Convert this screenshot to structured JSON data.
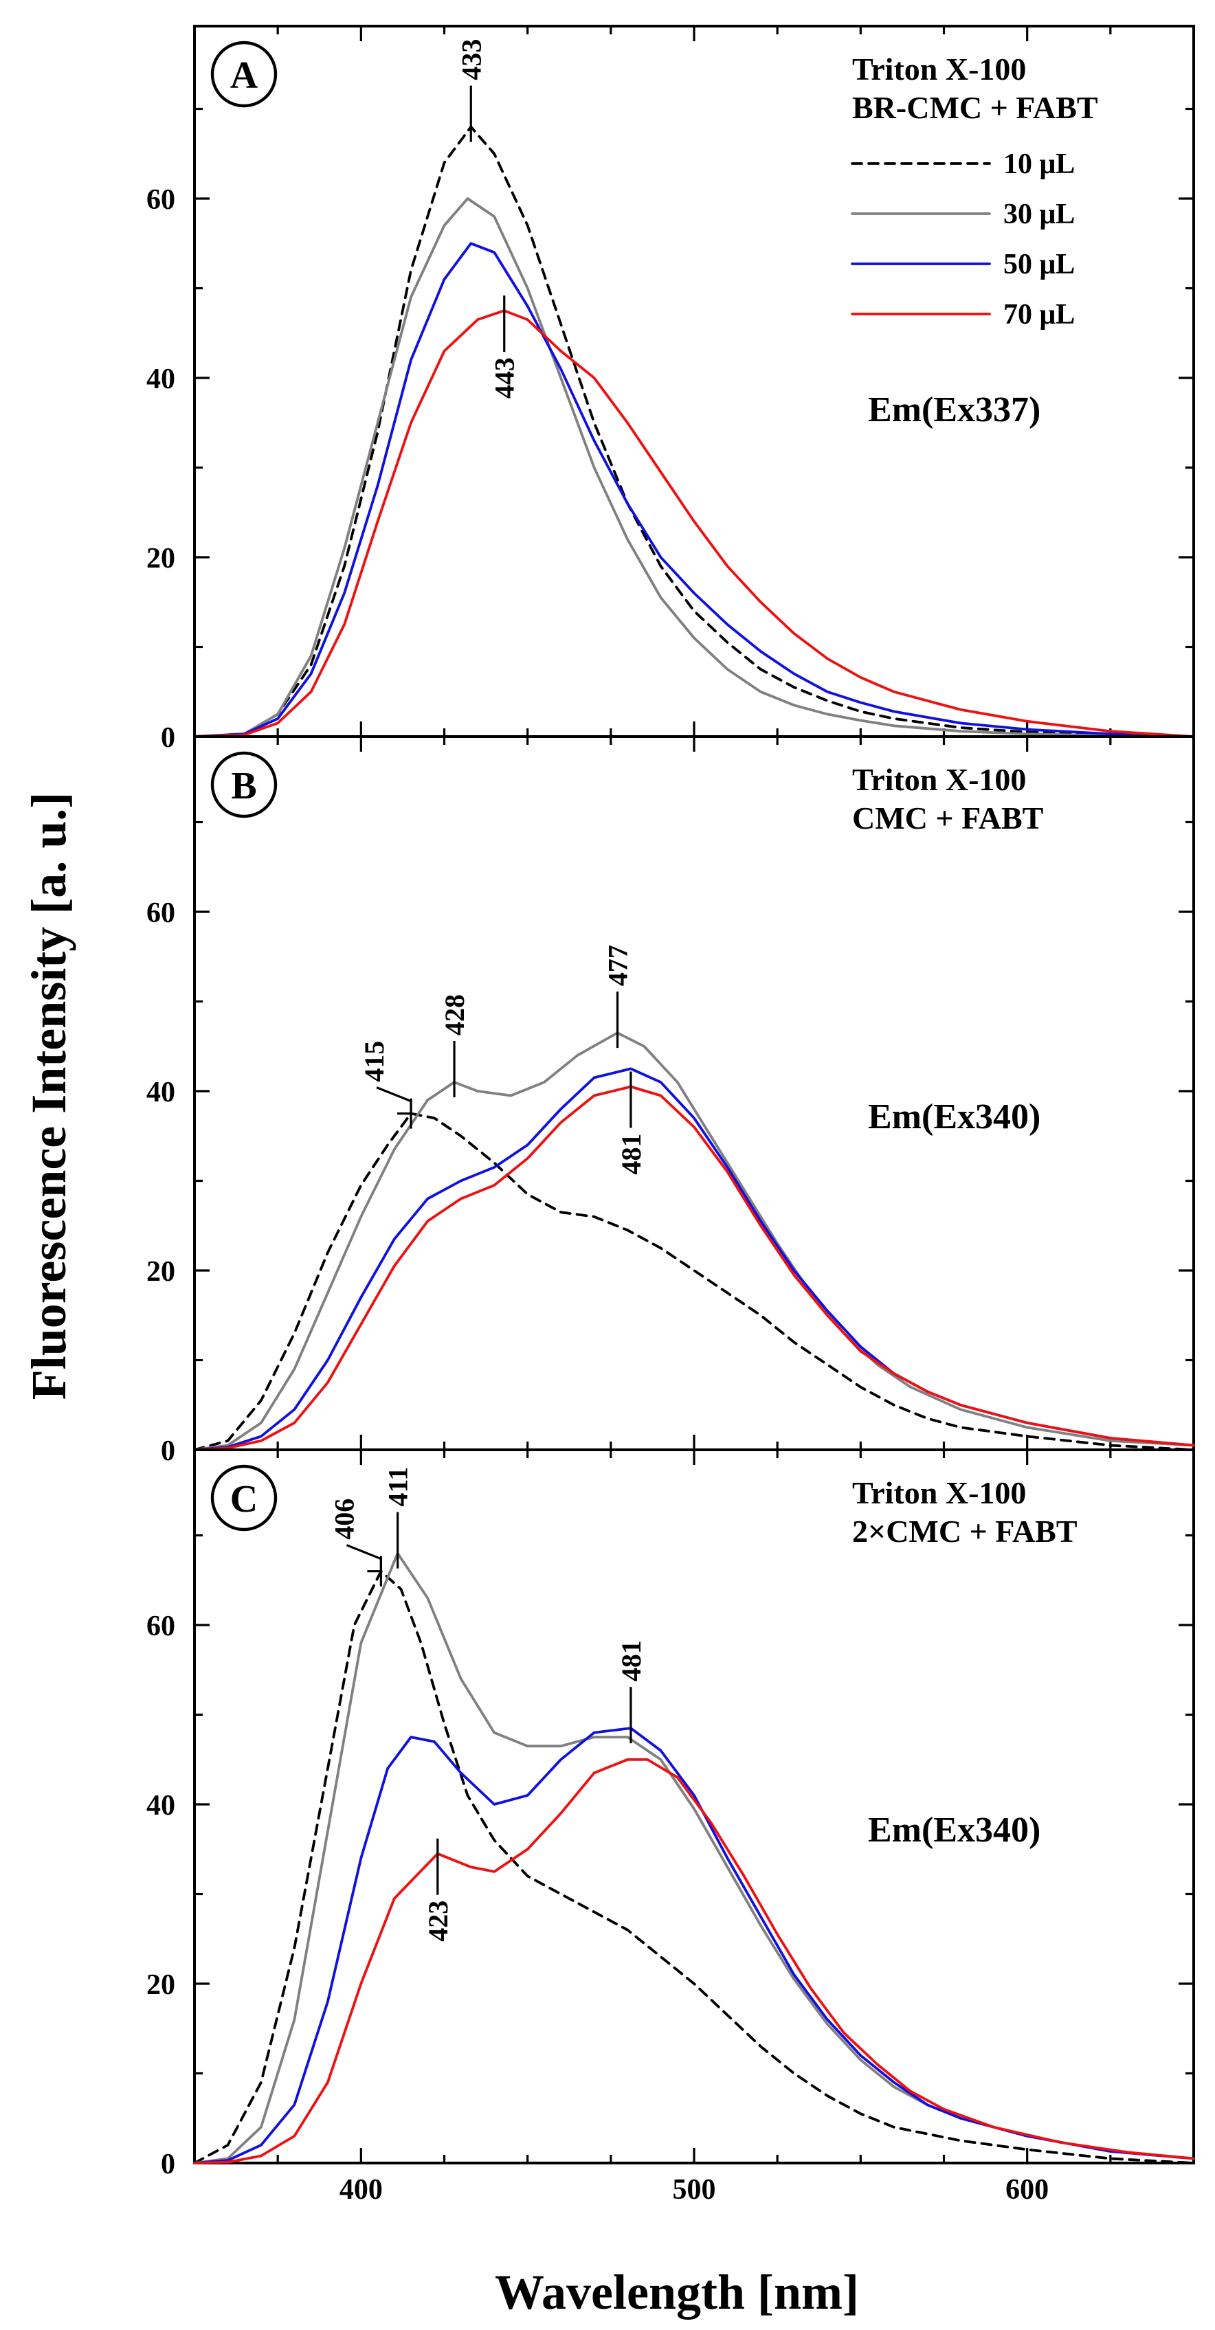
{
  "figure": {
    "ylabel": "Fluorescence Intensity [a. u.]",
    "xlabel": "Wavelength [nm]",
    "colors": {
      "10": "#000000",
      "30": "#808080",
      "50": "#1010e0",
      "70": "#ee1111"
    }
  },
  "chart_data": [
    {
      "panel": "A",
      "type": "line",
      "legend_title": [
        "Triton X-100",
        "BR-CMC + FABT"
      ],
      "legend_placement": "top-right",
      "em_label": "Em(Ex337)",
      "xlim": [
        350,
        650
      ],
      "ylim": [
        0,
        80
      ],
      "xticks": [
        "400",
        "500",
        "600"
      ],
      "yticks": [
        "0",
        "20",
        "40",
        "60"
      ],
      "series": [
        {
          "name": "10 μL",
          "style": "dashed",
          "x": [
            350,
            365,
            375,
            385,
            395,
            405,
            415,
            425,
            433,
            440,
            450,
            460,
            470,
            480,
            490,
            500,
            510,
            520,
            530,
            540,
            550,
            560,
            580,
            600,
            625,
            650
          ],
          "y": [
            0,
            0.3,
            2.5,
            8,
            19,
            34,
            52,
            64,
            68,
            65,
            57,
            46,
            35,
            26,
            19,
            14,
            10.5,
            7.5,
            5.5,
            4,
            2.8,
            2,
            1,
            0.5,
            0.2,
            0
          ]
        },
        {
          "name": "30 μL",
          "style": "solid",
          "x": [
            350,
            365,
            375,
            385,
            395,
            405,
            415,
            425,
            432,
            440,
            450,
            460,
            470,
            480,
            490,
            500,
            510,
            520,
            530,
            540,
            550,
            560,
            580,
            600,
            625,
            650
          ],
          "y": [
            0,
            0.3,
            2.5,
            9,
            21,
            35,
            49,
            57,
            60,
            58,
            50,
            40,
            30,
            22,
            15.5,
            11,
            7.5,
            5,
            3.5,
            2.5,
            1.8,
            1.2,
            0.6,
            0.3,
            0.1,
            0
          ]
        },
        {
          "name": "50 μL",
          "style": "solid",
          "x": [
            350,
            365,
            375,
            385,
            395,
            405,
            415,
            425,
            433,
            440,
            450,
            460,
            470,
            480,
            490,
            500,
            510,
            520,
            530,
            540,
            550,
            560,
            580,
            600,
            625,
            650
          ],
          "y": [
            0,
            0.3,
            2,
            7,
            16,
            28,
            42,
            51,
            55,
            54,
            48,
            41,
            33,
            26,
            20,
            16,
            12.5,
            9.5,
            7,
            5,
            3.8,
            2.8,
            1.5,
            0.8,
            0.3,
            0
          ]
        },
        {
          "name": "70 μL",
          "style": "solid",
          "x": [
            350,
            365,
            375,
            385,
            395,
            405,
            415,
            425,
            435,
            443,
            450,
            460,
            470,
            480,
            490,
            500,
            510,
            520,
            530,
            540,
            550,
            560,
            580,
            600,
            625,
            650
          ],
          "y": [
            0,
            0.2,
            1.5,
            5,
            12.5,
            24,
            35,
            43,
            46.5,
            47.5,
            46.5,
            43,
            40,
            35,
            29.5,
            24,
            19,
            15,
            11.5,
            8.7,
            6.6,
            5,
            3,
            1.7,
            0.6,
            0
          ]
        }
      ],
      "annotations": [
        {
          "text": "433",
          "x": 433,
          "y": 68,
          "dir": "up"
        },
        {
          "text": "443",
          "x": 443,
          "y": 47.5,
          "dir": "down"
        }
      ]
    },
    {
      "panel": "B",
      "type": "line",
      "legend_title": [
        "Triton X-100",
        "CMC + FABT"
      ],
      "legend_placement": "top-right",
      "em_label": "Em(Ex340)",
      "xlim": [
        350,
        650
      ],
      "ylim": [
        0,
        80
      ],
      "xticks": [
        "400",
        "500",
        "600"
      ],
      "yticks": [
        "0",
        "20",
        "40",
        "60"
      ],
      "series": [
        {
          "name": "10 μL",
          "style": "dashed",
          "x": [
            350,
            360,
            370,
            380,
            390,
            400,
            408,
            415,
            422,
            430,
            440,
            450,
            460,
            470,
            480,
            490,
            500,
            510,
            520,
            530,
            540,
            550,
            560,
            570,
            580,
            600,
            625,
            650
          ],
          "y": [
            0,
            1,
            5.5,
            13,
            22,
            29.5,
            34,
            37.5,
            37,
            35,
            32,
            28.5,
            26.5,
            26,
            24.5,
            22.5,
            20,
            17.5,
            15,
            12,
            9.5,
            7,
            5,
            3.5,
            2.5,
            1.5,
            0.5,
            0
          ]
        },
        {
          "name": "30 μL",
          "style": "solid",
          "x": [
            350,
            360,
            370,
            380,
            390,
            400,
            410,
            420,
            428,
            435,
            445,
            455,
            465,
            477,
            485,
            495,
            505,
            515,
            525,
            535,
            545,
            555,
            565,
            580,
            600,
            625,
            650
          ],
          "y": [
            0,
            0.5,
            3,
            9,
            17.5,
            26,
            33.5,
            39,
            41,
            40,
            39.5,
            41,
            44,
            46.5,
            45,
            41,
            35,
            29,
            23,
            17.5,
            13,
            9.5,
            7,
            4.5,
            2.5,
            1,
            0.5
          ]
        },
        {
          "name": "50 μL",
          "style": "solid",
          "x": [
            350,
            360,
            370,
            380,
            390,
            400,
            410,
            420,
            430,
            440,
            450,
            460,
            470,
            481,
            490,
            500,
            510,
            520,
            530,
            540,
            550,
            560,
            570,
            580,
            600,
            625,
            650
          ],
          "y": [
            0,
            0.3,
            1.5,
            4.5,
            10,
            17,
            23.5,
            28,
            30,
            31.5,
            34,
            38,
            41.5,
            42.5,
            41,
            37,
            31.5,
            25.5,
            20,
            15.5,
            11.5,
            8.5,
            6.5,
            5,
            3,
            1.3,
            0.5
          ]
        },
        {
          "name": "70 μL",
          "style": "solid",
          "x": [
            350,
            360,
            370,
            380,
            390,
            400,
            410,
            420,
            430,
            440,
            450,
            460,
            470,
            481,
            490,
            500,
            510,
            520,
            530,
            540,
            550,
            560,
            570,
            580,
            600,
            625,
            650
          ],
          "y": [
            0,
            0.2,
            1,
            3,
            7.5,
            14,
            20.5,
            25.5,
            28,
            29.5,
            32.5,
            36.5,
            39.5,
            40.5,
            39.5,
            36,
            31,
            25,
            19.5,
            15,
            11,
            8.5,
            6.5,
            5,
            3,
            1.3,
            0.5
          ]
        }
      ],
      "annotations": [
        {
          "text": "415",
          "x": 415,
          "y": 37.5,
          "dir": "up-left"
        },
        {
          "text": "428",
          "x": 428,
          "y": 41,
          "dir": "up"
        },
        {
          "text": "477",
          "x": 477,
          "y": 46.5,
          "dir": "up"
        },
        {
          "text": "481",
          "x": 481,
          "y": 40.5,
          "dir": "down"
        }
      ]
    },
    {
      "panel": "C",
      "type": "line",
      "legend_title": [
        "Triton X-100",
        "2×CMC + FABT"
      ],
      "legend_placement": "top-right",
      "em_label": "Em(Ex340)",
      "xlim": [
        350,
        650
      ],
      "ylim": [
        0,
        80
      ],
      "xticks": [
        "400",
        "500",
        "600"
      ],
      "yticks": [
        "0",
        "20",
        "40",
        "60"
      ],
      "series": [
        {
          "name": "10 μL",
          "style": "dashed",
          "x": [
            350,
            360,
            370,
            380,
            390,
            398,
            406,
            412,
            418,
            425,
            432,
            440,
            450,
            460,
            470,
            480,
            490,
            500,
            510,
            520,
            530,
            540,
            550,
            560,
            580,
            600,
            625,
            650
          ],
          "y": [
            0,
            2,
            9,
            24,
            44,
            60,
            66,
            64,
            58,
            49,
            41,
            36,
            32,
            30,
            28,
            26,
            23,
            20,
            16.5,
            13,
            10,
            7.5,
            5.5,
            4,
            2.5,
            1.5,
            0.5,
            0
          ]
        },
        {
          "name": "30 μL",
          "style": "solid",
          "x": [
            350,
            360,
            370,
            380,
            390,
            400,
            411,
            420,
            430,
            440,
            450,
            460,
            470,
            480,
            490,
            500,
            510,
            520,
            530,
            540,
            550,
            560,
            570,
            580,
            600,
            625,
            650
          ],
          "y": [
            0,
            0.5,
            4,
            16,
            37,
            58,
            68,
            63,
            54,
            48,
            46.5,
            46.5,
            47.5,
            47.5,
            45,
            39.5,
            33,
            26.5,
            20.5,
            15.5,
            11.5,
            8.5,
            6.5,
            5,
            3,
            1.3,
            0.5
          ]
        },
        {
          "name": "50 μL",
          "style": "solid",
          "x": [
            350,
            360,
            370,
            380,
            390,
            400,
            408,
            415,
            422,
            430,
            440,
            450,
            460,
            470,
            481,
            490,
            500,
            510,
            520,
            530,
            540,
            550,
            560,
            570,
            580,
            600,
            625,
            650
          ],
          "y": [
            0,
            0.3,
            2,
            6.5,
            18,
            34,
            44,
            47.5,
            47,
            43.5,
            40,
            41,
            45,
            48,
            48.5,
            46,
            41,
            34,
            27.5,
            21,
            16,
            12,
            9,
            6.5,
            5,
            3,
            1.3,
            0.5
          ]
        },
        {
          "name": "70 μL",
          "style": "solid",
          "x": [
            350,
            360,
            370,
            380,
            390,
            400,
            410,
            423,
            433,
            440,
            450,
            460,
            470,
            480,
            486,
            495,
            505,
            515,
            525,
            535,
            545,
            555,
            565,
            575,
            590,
            610,
            630,
            650
          ],
          "y": [
            0,
            0.1,
            0.8,
            3,
            9,
            20,
            29.5,
            34.5,
            33,
            32.5,
            35,
            39,
            43.5,
            45,
            45,
            43,
            38,
            32,
            25.5,
            19.5,
            14.5,
            11,
            8,
            6,
            4,
            2.3,
            1.2,
            0.5
          ]
        }
      ],
      "annotations": [
        {
          "text": "406",
          "x": 406,
          "y": 66,
          "dir": "up-left"
        },
        {
          "text": "411",
          "x": 411,
          "y": 68,
          "dir": "up"
        },
        {
          "text": "481",
          "x": 481,
          "y": 48.5,
          "dir": "up"
        },
        {
          "text": "423",
          "x": 423,
          "y": 34.5,
          "dir": "down"
        }
      ]
    }
  ]
}
